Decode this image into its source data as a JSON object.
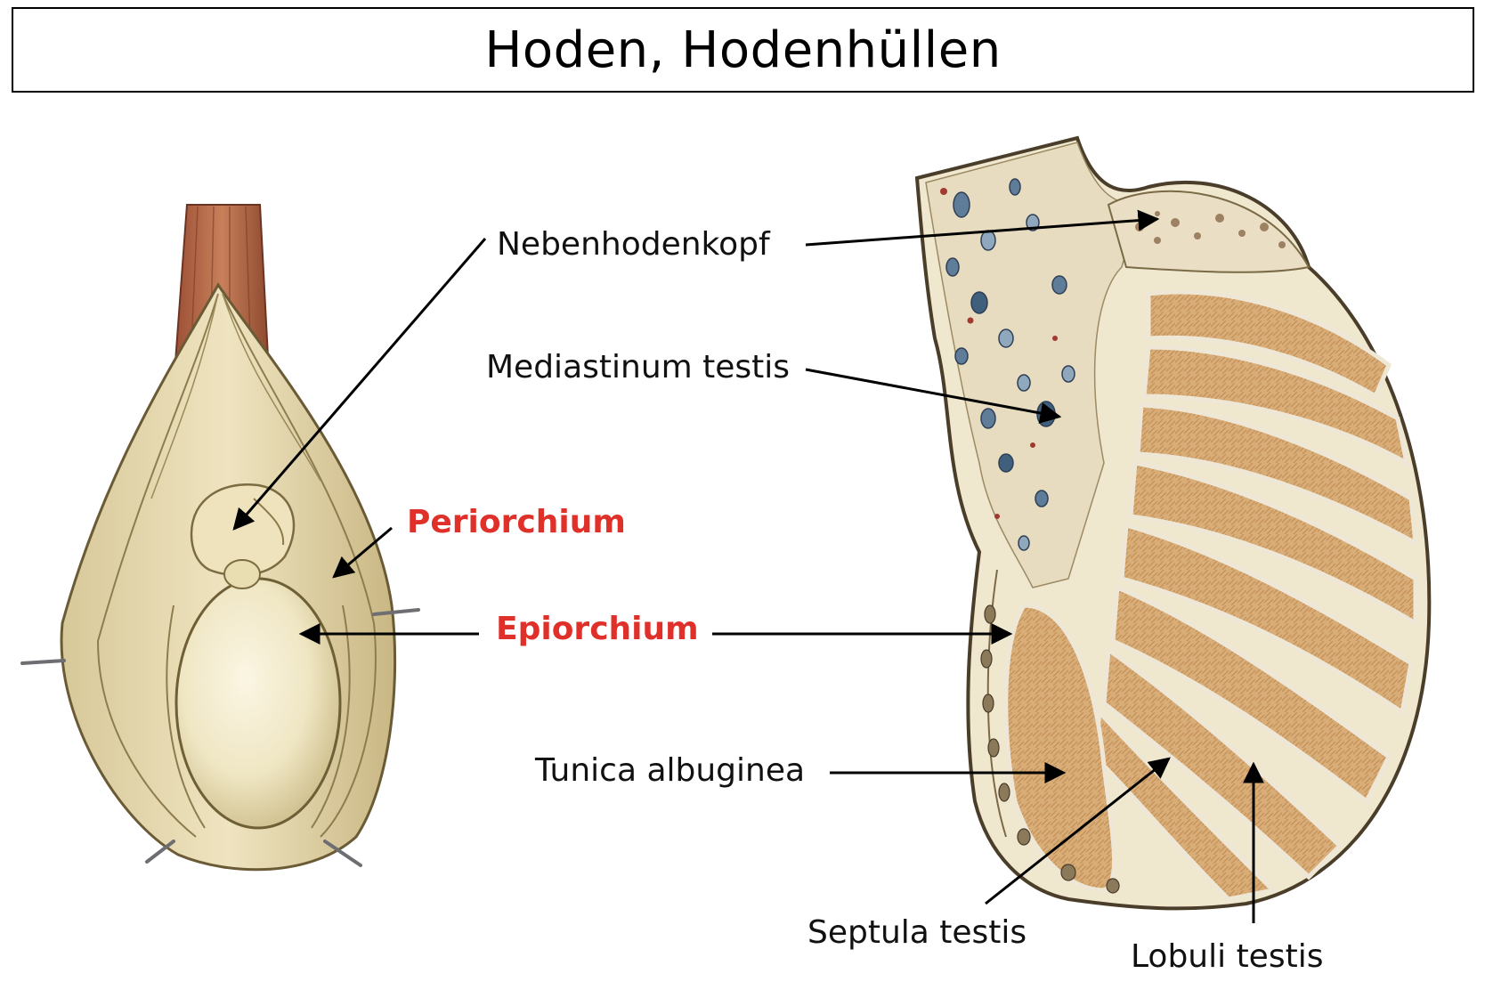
{
  "title": "Hoden, Hodenhüllen",
  "labels": {
    "nebenhodenkopf": "Nebenhodenkopf",
    "mediastinum": "Mediastinum testis",
    "periorchium": "Periorchium",
    "epiorchium": "Epiorchium",
    "tunica": "Tunica albuginea",
    "septula": "Septula testis",
    "lobuli": "Lobuli testis"
  },
  "colors": {
    "highlight": "#e0302a",
    "text": "#111111",
    "tissue": "#e9dfb8",
    "lobule": "#d9ae78",
    "cord": "#b86a45"
  }
}
